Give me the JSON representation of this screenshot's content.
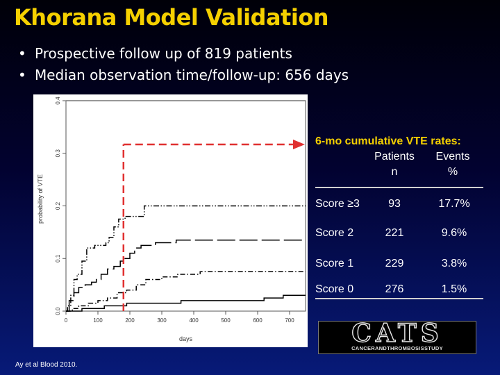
{
  "slide": {
    "title": "Khorana Model Validation",
    "bullets": [
      "Prospective follow up of 819 patients",
      "Median observation time/follow-up: 656 days"
    ],
    "footnote": "Ay et al Blood 2010.",
    "bullet_symbol": "•"
  },
  "chart_data": {
    "type": "line",
    "xlabel": "days",
    "ylabel": "probability of VTE",
    "xlim": [
      0,
      750
    ],
    "ylim": [
      0,
      0.4
    ],
    "xticks": [
      "0",
      "100",
      "200",
      "300",
      "400",
      "500",
      "600",
      "700"
    ],
    "yticks": [
      "0.0",
      "0.1",
      "0.2",
      "0.3",
      "0.4"
    ],
    "grid": false,
    "series": [
      {
        "style": "dash-dot-dot",
        "points": [
          [
            0,
            0
          ],
          [
            5,
            0.01
          ],
          [
            15,
            0.03
          ],
          [
            25,
            0.06
          ],
          [
            35,
            0.07
          ],
          [
            50,
            0.095
          ],
          [
            65,
            0.12
          ],
          [
            90,
            0.125
          ],
          [
            125,
            0.13
          ],
          [
            135,
            0.14
          ],
          [
            150,
            0.16
          ],
          [
            165,
            0.175
          ],
          [
            185,
            0.18
          ],
          [
            230,
            0.18
          ],
          [
            245,
            0.2
          ],
          [
            750,
            0.2
          ]
        ]
      },
      {
        "style": "long-dash",
        "points": [
          [
            0,
            0
          ],
          [
            10,
            0.02
          ],
          [
            25,
            0.035
          ],
          [
            40,
            0.045
          ],
          [
            60,
            0.05
          ],
          [
            80,
            0.055
          ],
          [
            95,
            0.06
          ],
          [
            110,
            0.07
          ],
          [
            130,
            0.08
          ],
          [
            150,
            0.085
          ],
          [
            170,
            0.095
          ],
          [
            185,
            0.1
          ],
          [
            200,
            0.11
          ],
          [
            215,
            0.12
          ],
          [
            235,
            0.125
          ],
          [
            280,
            0.13
          ],
          [
            320,
            0.13
          ],
          [
            345,
            0.135
          ],
          [
            750,
            0.135
          ]
        ]
      },
      {
        "style": "dash-dot",
        "points": [
          [
            0,
            0
          ],
          [
            20,
            0.005
          ],
          [
            40,
            0.01
          ],
          [
            70,
            0.015
          ],
          [
            100,
            0.02
          ],
          [
            130,
            0.025
          ],
          [
            160,
            0.035
          ],
          [
            190,
            0.04
          ],
          [
            220,
            0.05
          ],
          [
            250,
            0.06
          ],
          [
            300,
            0.065
          ],
          [
            350,
            0.07
          ],
          [
            420,
            0.075
          ],
          [
            750,
            0.075
          ]
        ]
      },
      {
        "style": "solid",
        "points": [
          [
            0,
            0
          ],
          [
            50,
            0.005
          ],
          [
            120,
            0.01
          ],
          [
            190,
            0.015
          ],
          [
            250,
            0.015
          ],
          [
            360,
            0.02
          ],
          [
            500,
            0.02
          ],
          [
            620,
            0.025
          ],
          [
            680,
            0.03
          ],
          [
            750,
            0.03
          ]
        ]
      }
    ],
    "annotation": {
      "x_day": 180,
      "style": "red dashed arrow",
      "color": "#e03030"
    },
    "line_color": "#000000",
    "plot_bg": "#ffffff"
  },
  "table": {
    "title": "6-mo cumulative VTE rates:",
    "col_patients": [
      "Patients",
      "n"
    ],
    "col_events": [
      "Events",
      "%"
    ],
    "rows": [
      {
        "label": "Score ≥3",
        "n": "93",
        "pct": "17.7%"
      },
      {
        "label": "Score 2",
        "n": "221",
        "pct": "9.6%"
      },
      {
        "label": "Score 1",
        "n": "229",
        "pct": "3.8%"
      },
      {
        "label": "Score 0",
        "n": "276",
        "pct": "1.5%"
      }
    ]
  },
  "logo": {
    "main": "CATS",
    "sub": "CANCERANDTHROMBOSISSTUDY"
  },
  "colors": {
    "title": "#f5d000",
    "accent_red": "#e03030",
    "text": "#ffffff"
  }
}
